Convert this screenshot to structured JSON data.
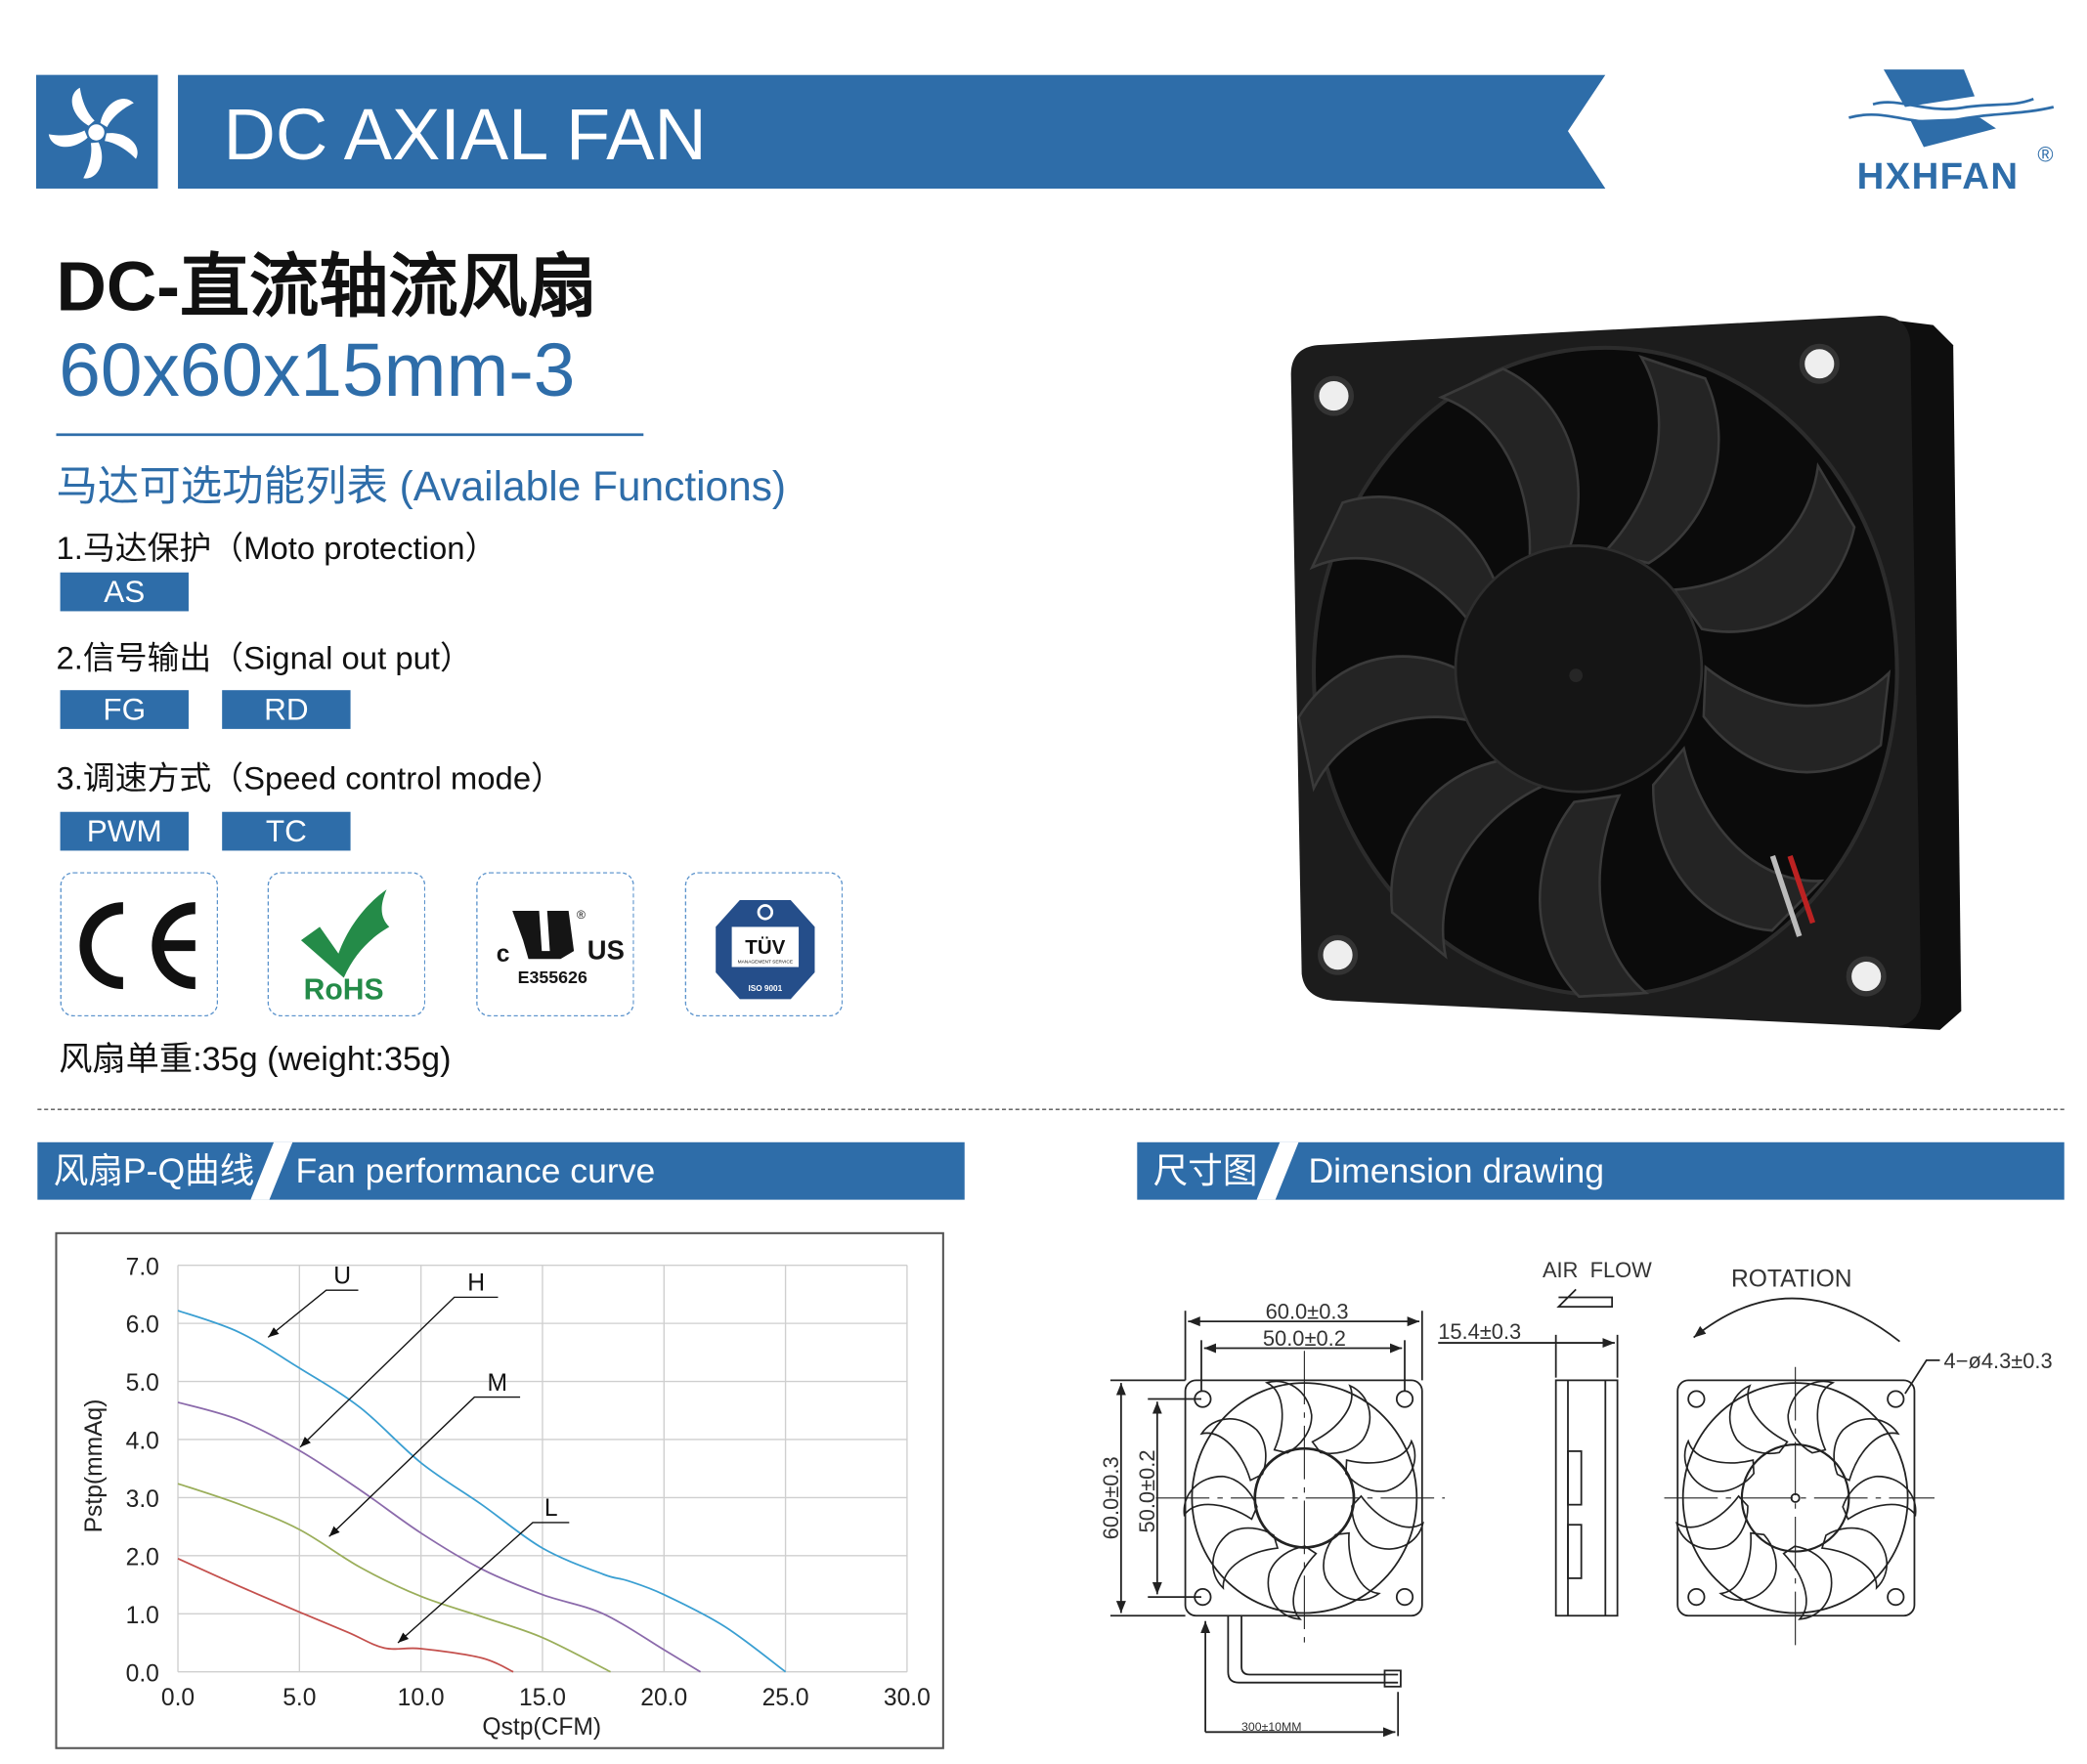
{
  "header": {
    "title": "DC AXIAL FAN",
    "logo_text": "HXHFAN",
    "logo_mark": "®",
    "brand_color": "#2e6da9"
  },
  "product": {
    "title_cn": "DC-直流轴流风扇",
    "model": "60x60x15mm-3",
    "functions_heading": "马达可选功能列表 (Available Functions)",
    "functions": [
      {
        "label": "1.马达保护（Moto protection）",
        "options": [
          "AS"
        ]
      },
      {
        "label": "2.信号输出（Signal out put）",
        "options": [
          "FG",
          "RD"
        ]
      },
      {
        "label": "3.调速方式（Speed control mode）",
        "options": [
          "PWM",
          "TC"
        ]
      }
    ],
    "certifications": [
      {
        "name": "CE",
        "icon": "ce-mark-icon"
      },
      {
        "name": "RoHS",
        "icon": "rohs-check-icon"
      },
      {
        "name": "cULus",
        "icon": "ul-mark-icon",
        "code": "E355626",
        "c": "c",
        "us": "US"
      },
      {
        "name": "TÜV",
        "icon": "tuv-iso-icon",
        "sub": "MANAGEMENT SERVICE",
        "iso": "ISO 9001"
      }
    ],
    "weight": "风扇单重:35g (weight:35g)"
  },
  "sections": {
    "curve": {
      "cn": "风扇P-Q曲线",
      "en": "Fan performance curve"
    },
    "dimension": {
      "cn": "尺寸图",
      "en": "Dimension drawing"
    }
  },
  "chart_data": {
    "type": "line",
    "xlabel": "Qstp(CFM)",
    "ylabel": "Pstp(mmAq)",
    "xlim": [
      0,
      30
    ],
    "ylim": [
      0,
      7
    ],
    "xticks": [
      "0.0",
      "5.0",
      "10.0",
      "15.0",
      "20.0",
      "25.0",
      "30.0"
    ],
    "yticks": [
      "0.0",
      "1.0",
      "2.0",
      "3.0",
      "4.0",
      "5.0",
      "6.0",
      "7.0"
    ],
    "grid": true,
    "series": [
      {
        "name": "U",
        "color": "#3a9fd2",
        "x": [
          0,
          2.5,
          5,
          7.5,
          10,
          12.5,
          15,
          17.5,
          18.5,
          20,
          22.5,
          25
        ],
        "y": [
          6.22,
          5.85,
          5.23,
          4.55,
          3.6,
          2.88,
          2.13,
          1.68,
          1.57,
          1.33,
          0.78,
          0
        ]
      },
      {
        "name": "H",
        "color": "#8b6aab",
        "x": [
          0,
          2.5,
          5,
          7.5,
          10,
          12.5,
          15,
          17.5,
          20,
          21.5
        ],
        "y": [
          4.64,
          4.34,
          3.81,
          3.13,
          2.39,
          1.77,
          1.33,
          1.0,
          0.38,
          0
        ]
      },
      {
        "name": "M",
        "color": "#9aae5a",
        "x": [
          0,
          2.5,
          5,
          7.5,
          10,
          12.5,
          15,
          17.8
        ],
        "y": [
          3.24,
          2.89,
          2.45,
          1.8,
          1.3,
          0.95,
          0.59,
          0
        ]
      },
      {
        "name": "L",
        "color": "#c4504d",
        "x": [
          0,
          2.5,
          5,
          7,
          8.5,
          10,
          12.5,
          13.8
        ],
        "y": [
          1.95,
          1.48,
          1.03,
          0.68,
          0.41,
          0.4,
          0.24,
          0
        ]
      }
    ]
  },
  "dimension": {
    "width_outer": "60.0±0.3",
    "width_inner": "50.0±0.2",
    "height_outer": "60.0±0.3",
    "height_inner": "50.0±0.2",
    "thickness": "15.4±0.3",
    "airflow": "AIR  FLOW",
    "rotation": "ROTATION",
    "holes": "4−ø4.3±0.3",
    "cable": "300±10MM"
  }
}
